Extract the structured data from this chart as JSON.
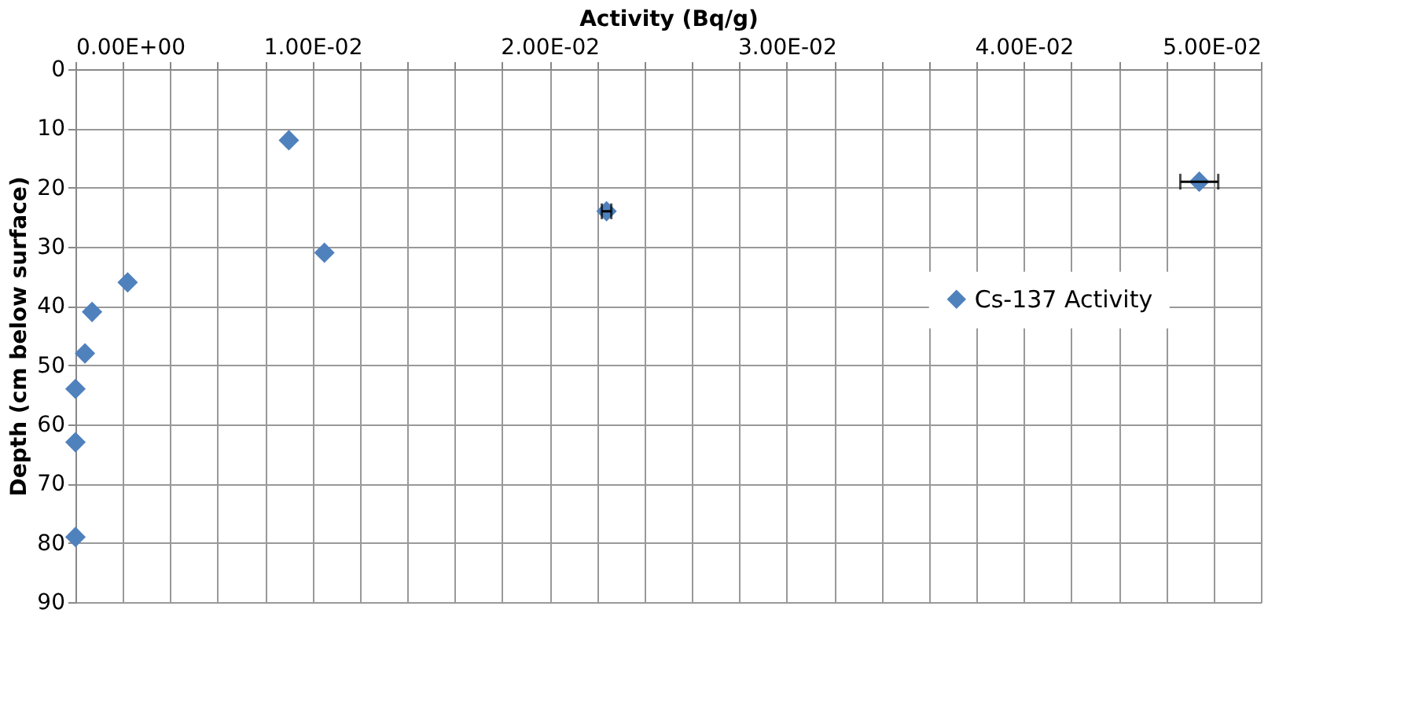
{
  "chart_data": {
    "type": "scatter",
    "xlabel": "Activity (Bq/g)",
    "ylabel": "Depth (cm below surface)",
    "xlim": [
      0,
      0.05
    ],
    "xticks": [
      {
        "value": 0,
        "label": "0.00E+00"
      },
      {
        "value": 0.002,
        "label": null
      },
      {
        "value": 0.004,
        "label": null
      },
      {
        "value": 0.006,
        "label": null
      },
      {
        "value": 0.008,
        "label": null
      },
      {
        "value": 0.01,
        "label": "1.00E-02"
      },
      {
        "value": 0.012,
        "label": null
      },
      {
        "value": 0.014,
        "label": null
      },
      {
        "value": 0.016,
        "label": null
      },
      {
        "value": 0.018,
        "label": null
      },
      {
        "value": 0.02,
        "label": "2.00E-02"
      },
      {
        "value": 0.022,
        "label": null
      },
      {
        "value": 0.024,
        "label": null
      },
      {
        "value": 0.026,
        "label": null
      },
      {
        "value": 0.028,
        "label": null
      },
      {
        "value": 0.03,
        "label": "3.00E-02"
      },
      {
        "value": 0.032,
        "label": null
      },
      {
        "value": 0.034,
        "label": null
      },
      {
        "value": 0.036,
        "label": null
      },
      {
        "value": 0.038,
        "label": null
      },
      {
        "value": 0.04,
        "label": "4.00E-02"
      },
      {
        "value": 0.042,
        "label": null
      },
      {
        "value": 0.044,
        "label": null
      },
      {
        "value": 0.046,
        "label": null
      },
      {
        "value": 0.048,
        "label": null
      },
      {
        "value": 0.05,
        "label": "5.00E-02"
      }
    ],
    "ylim": [
      90,
      0
    ],
    "yticks": [
      0,
      10,
      20,
      30,
      40,
      50,
      60,
      70,
      80,
      90
    ],
    "grid": true,
    "legend": "right",
    "marker": "diamond",
    "series": [
      {
        "name": "Cs-137 Activity",
        "color": "#4f81bd",
        "x": [
          0.009,
          0.0105,
          0.0224,
          0.0474,
          0.0022,
          0.0007,
          0.0004,
          0,
          0,
          0
        ],
        "values": [
          12,
          31,
          24,
          19,
          36,
          41,
          48,
          54,
          63,
          79
        ],
        "xerrors": [
          null,
          null,
          0.0002,
          0.0008,
          null,
          null,
          null,
          null,
          null,
          null
        ]
      }
    ]
  }
}
